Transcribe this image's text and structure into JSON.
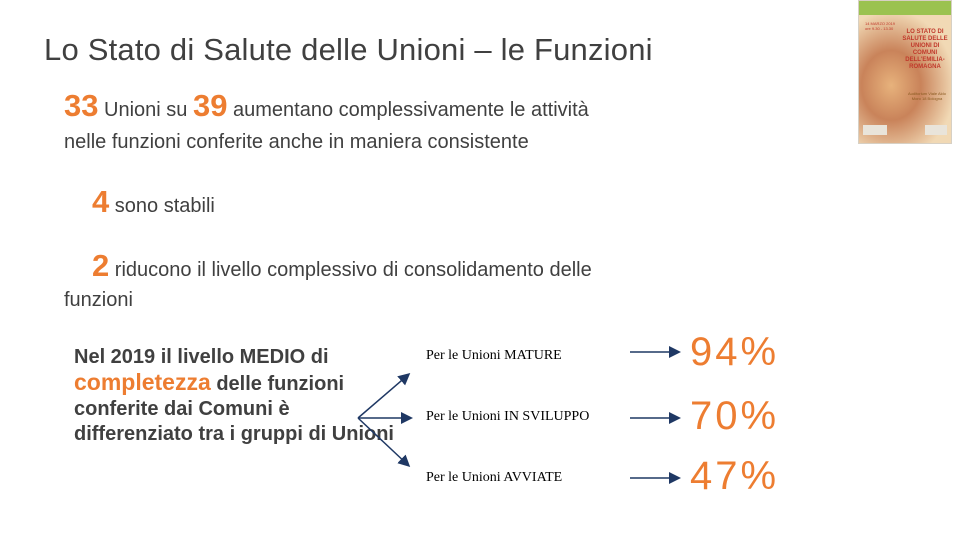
{
  "slide": {
    "title": "Lo Stato di Salute delle Unioni – le Funzioni",
    "para1": {
      "num1": "33",
      "text1": " Unioni su ",
      "num2": "39",
      "text2": " aumentano complessivamente le attività",
      "line2": "nelle   funzioni conferite anche in maniera consistente"
    },
    "para2": {
      "num": "4",
      "text": "  sono stabili"
    },
    "para3": {
      "num": "2",
      "text": "  riducono il livello complessivo di consolidamento delle",
      "line2": "funzioni"
    },
    "left_block": {
      "text1": "Nel 2019 il livello MEDIO di ",
      "highlight": "completezza",
      "text2": " delle funzioni conferite dai Comuni è differenziato tra  i gruppi di Unioni"
    },
    "groups": [
      {
        "label": "Per le Unioni MATURE",
        "pct": "94%"
      },
      {
        "label": "Per le Unioni IN SVILUPPO",
        "pct": "70%"
      },
      {
        "label": "Per le Unioni AVVIATE",
        "pct": "47%"
      }
    ],
    "cover": {
      "date": "14 MARZO 2019 ore 9.30 - 13.30",
      "title": "LO STATO DI SALUTE DELLE UNIONI DI COMUNI DELL'EMILIA-ROMAGNA",
      "subtitle": "Auditorium Viale Aldo Moro 18 Bologna"
    },
    "colors": {
      "accent": "#ed7d31",
      "text": "#404040",
      "arrow": "#1f3864"
    }
  }
}
